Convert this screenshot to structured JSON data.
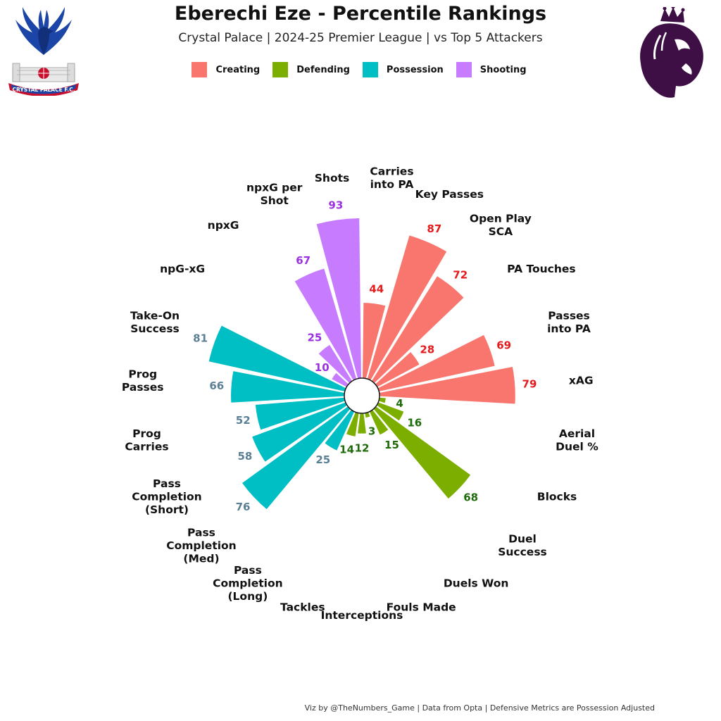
{
  "header": {
    "title": "Eberechi Eze - Percentile Rankings",
    "subtitle": "Crystal Palace | 2024-25 Premier League | vs Top 5 Attackers"
  },
  "legend": [
    {
      "label": "Creating",
      "color": "#F8766D"
    },
    {
      "label": "Defending",
      "color": "#7CAE00"
    },
    {
      "label": "Possession",
      "color": "#00BFC4"
    },
    {
      "label": "Shooting",
      "color": "#C77CFF"
    }
  ],
  "logos": {
    "left": {
      "name": "crystal-palace-crest",
      "text": "CRYSTAL PALACE F.C."
    },
    "right": {
      "name": "premier-league-lion-logo"
    }
  },
  "footer": "Viz by @TheNumbers_Game | Data from Opta | Defensive Metrics are Possession Adjusted",
  "chart_data": {
    "type": "polar-bar",
    "ylim": [
      0,
      100
    ],
    "label_colors": {
      "Creating": "#E41A1C",
      "Defending": "#1E6B0A",
      "Possession": "#5B7F95",
      "Shooting": "#9B30E0"
    },
    "categories": [
      {
        "label": "Carries\ninto PA",
        "value": 44,
        "group": "Creating"
      },
      {
        "label": "Key Passes",
        "value": 87,
        "group": "Creating"
      },
      {
        "label": "Open Play\nSCA",
        "value": 72,
        "group": "Creating"
      },
      {
        "label": "PA Touches",
        "value": 28,
        "group": "Creating"
      },
      {
        "label": "Passes\ninto PA",
        "value": 69,
        "group": "Creating"
      },
      {
        "label": "xAG",
        "value": 79,
        "group": "Creating"
      },
      {
        "label": "Aerial\nDuel %",
        "value": 4,
        "group": "Defending"
      },
      {
        "label": "Blocks",
        "value": 16,
        "group": "Defending"
      },
      {
        "label": "Duel\nSuccess",
        "value": 68,
        "group": "Defending"
      },
      {
        "label": "Duels Won",
        "value": 15,
        "group": "Defending"
      },
      {
        "label": "Fouls Made",
        "value": 3,
        "group": "Defending"
      },
      {
        "label": "Interceptions",
        "value": 12,
        "group": "Defending"
      },
      {
        "label": "Tackles",
        "value": 14,
        "group": "Defending"
      },
      {
        "label": "Pass\nCompletion\n(Long)",
        "value": 25,
        "group": "Possession"
      },
      {
        "label": "Pass\nCompletion\n(Med)",
        "value": 76,
        "group": "Possession"
      },
      {
        "label": "Pass\nCompletion\n(Short)",
        "value": 58,
        "group": "Possession"
      },
      {
        "label": "Prog\nCarries",
        "value": 52,
        "group": "Possession"
      },
      {
        "label": "Prog\nPasses",
        "value": 66,
        "group": "Possession"
      },
      {
        "label": "Take-On\nSuccess",
        "value": 81,
        "group": "Possession"
      },
      {
        "label": "npG-xG",
        "value": 10,
        "group": "Shooting"
      },
      {
        "label": "npxG",
        "value": 25,
        "group": "Shooting"
      },
      {
        "label": "npxG per\nShot",
        "value": 67,
        "group": "Shooting"
      },
      {
        "label": "Shots",
        "value": 93,
        "group": "Shooting"
      }
    ]
  }
}
